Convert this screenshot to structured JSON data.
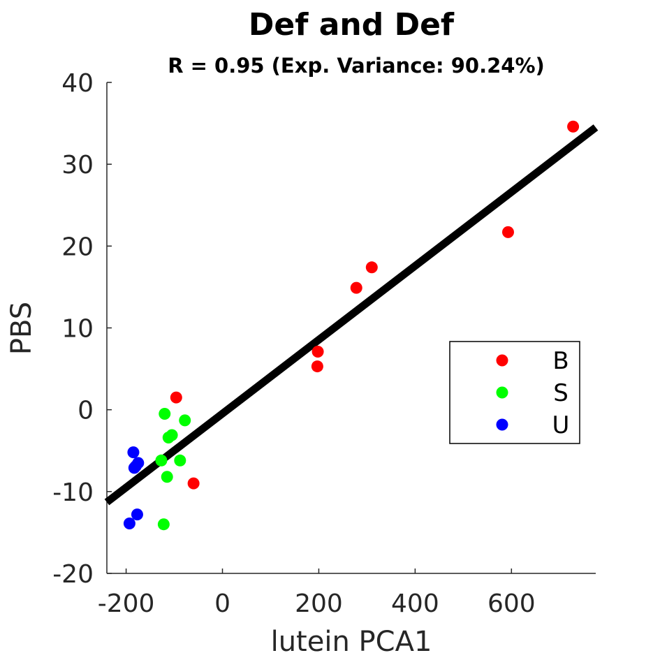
{
  "chart_data": {
    "type": "scatter",
    "title": "Def and Def",
    "subtitle": "R = 0.95 (Exp. Variance: 90.24%)",
    "xlabel": "lutein PCA1",
    "ylabel": "PBS",
    "xlim": [
      -240,
      775
    ],
    "ylim": [
      -20,
      40
    ],
    "xticks": [
      -200,
      0,
      200,
      400,
      600
    ],
    "yticks": [
      -20,
      -10,
      0,
      10,
      20,
      30,
      40
    ],
    "xtick_labels": [
      "-200",
      "0",
      "200",
      "400",
      "600"
    ],
    "ytick_labels": [
      "-20",
      "-10",
      "0",
      "10",
      "20",
      "30",
      "40"
    ],
    "grid": false,
    "legend_position": "right",
    "fit_line": {
      "x": [
        -240,
        775
      ],
      "y": [
        -11.3,
        34.5
      ],
      "color": "#000000"
    },
    "series": [
      {
        "name": "B",
        "color": "#ff0000",
        "points": [
          [
            728,
            34.6
          ],
          [
            593,
            21.7
          ],
          [
            310,
            17.4
          ],
          [
            278,
            14.9
          ],
          [
            198,
            7.1
          ],
          [
            197,
            5.3
          ],
          [
            -96,
            1.5
          ],
          [
            -60,
            -9.0
          ]
        ]
      },
      {
        "name": "S",
        "color": "#00ff00",
        "points": [
          [
            -120,
            -0.5
          ],
          [
            -78,
            -1.3
          ],
          [
            -105,
            -3.1
          ],
          [
            -112,
            -3.4
          ],
          [
            -88,
            -6.2
          ],
          [
            -127,
            -6.2
          ],
          [
            -115,
            -8.2
          ],
          [
            -122,
            -14.0
          ]
        ]
      },
      {
        "name": "U",
        "color": "#0000ff",
        "points": [
          [
            -185,
            -5.2
          ],
          [
            -175,
            -6.5
          ],
          [
            -180,
            -6.9
          ],
          [
            -183,
            -7.1
          ],
          [
            -177,
            -12.8
          ],
          [
            -193,
            -13.9
          ]
        ]
      }
    ]
  }
}
